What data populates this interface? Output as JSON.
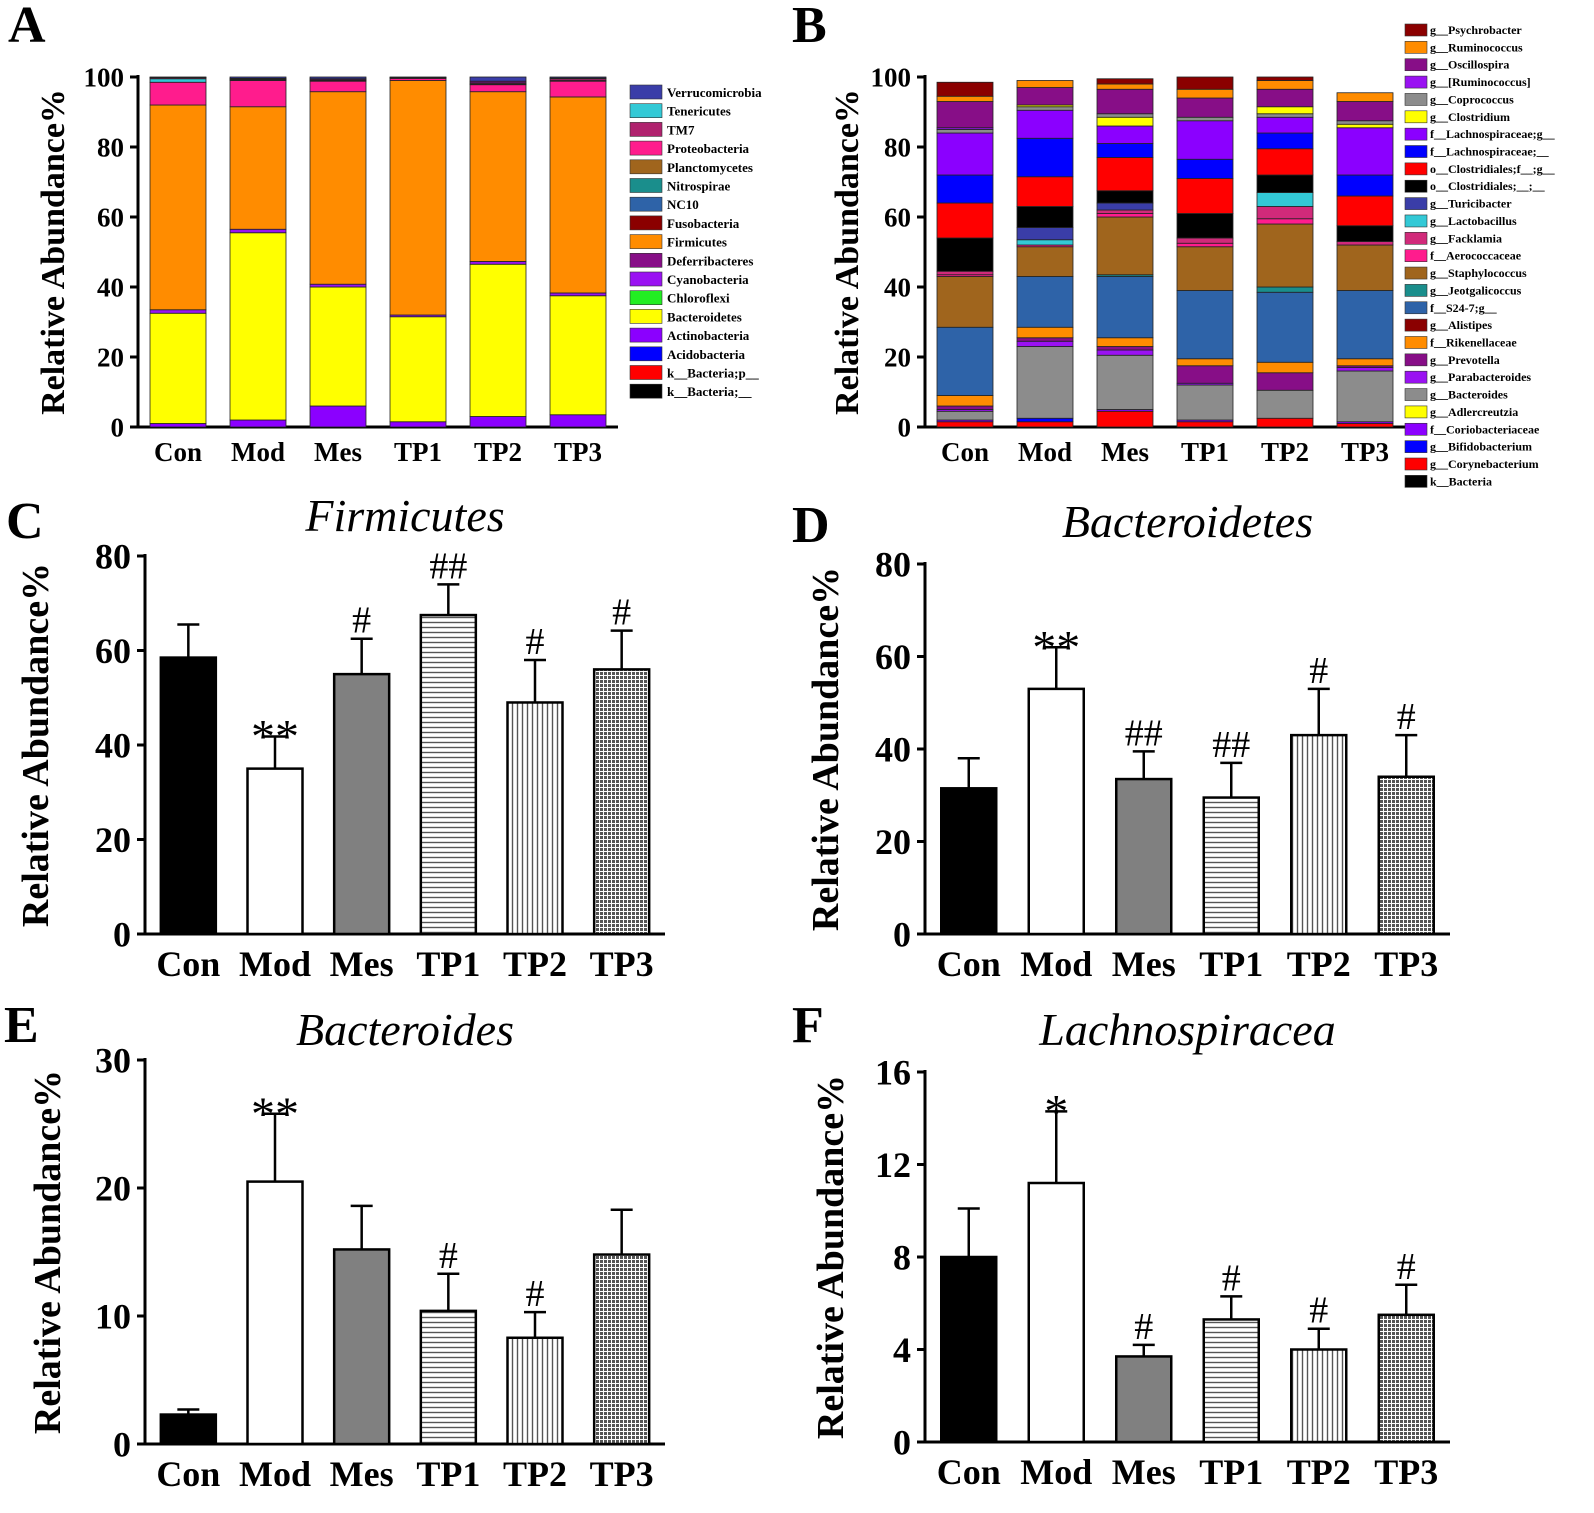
{
  "panel_labels": [
    "A",
    "B",
    "C",
    "D",
    "E",
    "F"
  ],
  "chart_data": [
    {
      "panel": "A",
      "type": "bar",
      "stacked": true,
      "ylabel": "Relative Abundance%",
      "ylim": [
        0,
        100
      ],
      "yticks": [
        "0",
        "20",
        "40",
        "60",
        "80",
        "100"
      ],
      "categories": [
        "Con",
        "Mod",
        "Mes",
        "TP1",
        "TP2",
        "TP3"
      ],
      "legend": [
        {
          "name": "Verrucomicrobia",
          "color": "#3A3DA8"
        },
        {
          "name": "Tenericutes",
          "color": "#33C9D6"
        },
        {
          "name": "TM7",
          "color": "#B0226E"
        },
        {
          "name": "Proteobacteria",
          "color": "#FF1C8D"
        },
        {
          "name": "Planctomycetes",
          "color": "#A0651D"
        },
        {
          "name": "Nitrospirae",
          "color": "#1A8E8C"
        },
        {
          "name": "NC10",
          "color": "#2E63A8"
        },
        {
          "name": "Fusobacteria",
          "color": "#8B0000"
        },
        {
          "name": "Firmicutes",
          "color": "#FF8C00"
        },
        {
          "name": "Deferribacteres",
          "color": "#870E87"
        },
        {
          "name": "Cyanobacteria",
          "color": "#9A12F2"
        },
        {
          "name": "Chloroflexi",
          "color": "#22EE22"
        },
        {
          "name": "Bacteroidetes",
          "color": "#FFFF00"
        },
        {
          "name": "Actinobacteria",
          "color": "#8B00FF"
        },
        {
          "name": "Acidobacteria",
          "color": "#0000FF"
        },
        {
          "name": "k__Bacteria;p__",
          "color": "#FF0000"
        },
        {
          "name": "k__Bacteria;__",
          "color": "#000000"
        }
      ],
      "series": [
        {
          "name": "Actinobacteria",
          "values": [
            1.0,
            2.0,
            6.0,
            1.5,
            3.0,
            3.5
          ]
        },
        {
          "name": "Bacteroidetes",
          "values": [
            31.5,
            53.5,
            34.0,
            30.0,
            43.5,
            34.0
          ]
        },
        {
          "name": "Cyanobacteria",
          "values": [
            1.0,
            1.0,
            0.8,
            0.5,
            0.8,
            0.8
          ]
        },
        {
          "name": "Firmicutes",
          "values": [
            58.5,
            35.0,
            55.0,
            67.0,
            48.5,
            56.0
          ]
        },
        {
          "name": "Proteobacteria",
          "values": [
            6.5,
            7.5,
            3.0,
            0.6,
            2.0,
            4.5
          ]
        },
        {
          "name": "Tenericutes",
          "values": [
            1.0,
            0.2,
            0.2,
            0.1,
            0.2,
            0.2
          ]
        },
        {
          "name": "TM7",
          "values": [
            0.3,
            0.2,
            0.2,
            0.1,
            0.3,
            0.5
          ]
        },
        {
          "name": "Deferribacteres",
          "values": [
            0.1,
            0.2,
            0.3,
            0.1,
            0.5,
            0.2
          ]
        },
        {
          "name": "Verrucomicrobia",
          "values": [
            0.1,
            0.4,
            0.5,
            0.1,
            1.2,
            0.3
          ]
        }
      ]
    },
    {
      "panel": "B",
      "type": "bar",
      "stacked": true,
      "ylabel": "Relative Abundance%",
      "ylim": [
        0,
        100
      ],
      "yticks": [
        "0",
        "20",
        "40",
        "60",
        "80",
        "100"
      ],
      "categories": [
        "Con",
        "Mod",
        "Mes",
        "TP1",
        "TP2",
        "TP3"
      ],
      "legend": [
        {
          "name": "g__Psychrobacter",
          "color": "#8B0000"
        },
        {
          "name": "g__Ruminococcus",
          "color": "#FF8C00"
        },
        {
          "name": "g__Oscillospira",
          "color": "#870E87"
        },
        {
          "name": "g__[Ruminococcus]",
          "color": "#9A12F2"
        },
        {
          "name": "g__Coprococcus",
          "color": "#8C8C8C"
        },
        {
          "name": "g__Clostridium",
          "color": "#FFFF00"
        },
        {
          "name": "f__Lachnospiraceae;g__",
          "color": "#8B00FF"
        },
        {
          "name": "f__Lachnospiraceae;__",
          "color": "#0000FF"
        },
        {
          "name": "o__Clostridiales;f__;g__",
          "color": "#FF0000"
        },
        {
          "name": "o__Clostridiales;__;__",
          "color": "#000000"
        },
        {
          "name": "g__Turicibacter",
          "color": "#3A3DA8"
        },
        {
          "name": "g__Lactobacillus",
          "color": "#33C9D6"
        },
        {
          "name": "g__Facklamia",
          "color": "#D12A7A"
        },
        {
          "name": "f__Aerococcaceae",
          "color": "#FF1C8D"
        },
        {
          "name": "g__Staphylococcus",
          "color": "#A0651D"
        },
        {
          "name": "g__Jeotgalicoccus",
          "color": "#1A8E8C"
        },
        {
          "name": "f__S24-7;g__",
          "color": "#2E63A8"
        },
        {
          "name": "g__Alistipes",
          "color": "#8B0000"
        },
        {
          "name": "f__Rikenellaceae",
          "color": "#FF8C00"
        },
        {
          "name": "g__Prevotella",
          "color": "#870E87"
        },
        {
          "name": "g__Parabacteroides",
          "color": "#9A12F2"
        },
        {
          "name": "g__Bacteroides",
          "color": "#8C8C8C"
        },
        {
          "name": "g__Adlercreutzia",
          "color": "#FFFF00"
        },
        {
          "name": "f__Coriobacteriaceae",
          "color": "#8B00FF"
        },
        {
          "name": "g__Bifidobacterium",
          "color": "#0000FF"
        },
        {
          "name": "g__Corynebacterium",
          "color": "#FF0000"
        },
        {
          "name": "k__Bacteria",
          "color": "#000000"
        }
      ],
      "stacks": [
        [
          [
            "g__Corynebacterium",
            1.5
          ],
          [
            "f__Coriobacteriaceae",
            0.5
          ],
          [
            "g__Bacteroides",
            2.5
          ],
          [
            "g__Parabacteroides",
            0.5
          ],
          [
            "g__Prevotella",
            1.0
          ],
          [
            "f__Rikenellaceae",
            3.0
          ],
          [
            "f__S24-7;g__",
            19.5
          ],
          [
            "g__Staphylococcus",
            14.5
          ],
          [
            "f__Aerococcaceae",
            0.5
          ],
          [
            "g__Facklamia",
            1.0
          ],
          [
            "o__Clostridiales;__;__",
            9.5
          ],
          [
            "o__Clostridiales;f__;g__",
            10.0
          ],
          [
            "f__Lachnospiraceae;__",
            8.0
          ],
          [
            "f__Lachnospiraceae;g__",
            12.0
          ],
          [
            "g__Coprococcus",
            1.0
          ],
          [
            "g__[Ruminococcus]",
            0.5
          ],
          [
            "g__Oscillospira",
            7.5
          ],
          [
            "g__Ruminococcus",
            1.5
          ],
          [
            "g__Psychrobacter",
            4.0
          ]
        ],
        [
          [
            "g__Corynebacterium",
            1.5
          ],
          [
            "g__Bifidobacterium",
            1.0
          ],
          [
            "g__Bacteroides",
            20.5
          ],
          [
            "g__Parabacteroides",
            1.5
          ],
          [
            "g__Prevotella",
            1.0
          ],
          [
            "f__Rikenellaceae",
            3.0
          ],
          [
            "f__S24-7;g__",
            14.5
          ],
          [
            "g__Staphylococcus",
            8.5
          ],
          [
            "f__Aerococcaceae",
            0.5
          ],
          [
            "g__Lactobacillus",
            1.5
          ],
          [
            "g__Turicibacter",
            3.5
          ],
          [
            "o__Clostridiales;__;__",
            6.0
          ],
          [
            "o__Clostridiales;f__;g__",
            8.5
          ],
          [
            "f__Lachnospiraceae;__",
            11.0
          ],
          [
            "f__Lachnospiraceae;g__",
            8.0
          ],
          [
            "g__Coprococcus",
            1.0
          ],
          [
            "g__Clostridium",
            0.5
          ],
          [
            "g__Oscillospira",
            5.0
          ],
          [
            "g__Ruminococcus",
            2.0
          ]
        ],
        [
          [
            "g__Corynebacterium",
            4.5
          ],
          [
            "f__Coriobacteriaceae",
            0.5
          ],
          [
            "g__Bacteroides",
            15.5
          ],
          [
            "g__Parabacteroides",
            1.5
          ],
          [
            "g__Prevotella",
            1.0
          ],
          [
            "f__Rikenellaceae",
            2.5
          ],
          [
            "f__S24-7;g__",
            17.5
          ],
          [
            "g__Jeotgalicoccus",
            0.5
          ],
          [
            "g__Staphylococcus",
            16.5
          ],
          [
            "f__Aerococcaceae",
            1.0
          ],
          [
            "g__Facklamia",
            1.0
          ],
          [
            "g__Turicibacter",
            2.0
          ],
          [
            "o__Clostridiales;__;__",
            3.5
          ],
          [
            "o__Clostridiales;f__;g__",
            9.5
          ],
          [
            "f__Lachnospiraceae;__",
            4.0
          ],
          [
            "f__Lachnospiraceae;g__",
            5.0
          ],
          [
            "g__Clostridium",
            2.5
          ],
          [
            "g__Coprococcus",
            1.0
          ],
          [
            "g__Oscillospira",
            7.0
          ],
          [
            "g__Ruminococcus",
            1.5
          ],
          [
            "g__Psychrobacter",
            1.5
          ]
        ],
        [
          [
            "g__Corynebacterium",
            1.5
          ],
          [
            "f__Coriobacteriaceae",
            0.5
          ],
          [
            "g__Bacteroides",
            10.0
          ],
          [
            "g__Parabacteroides",
            0.5
          ],
          [
            "g__Prevotella",
            5.0
          ],
          [
            "f__Rikenellaceae",
            2.0
          ],
          [
            "f__S24-7;g__",
            19.5
          ],
          [
            "g__Staphylococcus",
            12.5
          ],
          [
            "f__Aerococcaceae",
            1.0
          ],
          [
            "g__Facklamia",
            1.5
          ],
          [
            "o__Clostridiales;__;__",
            7.0
          ],
          [
            "o__Clostridiales;f__;g__",
            10.0
          ],
          [
            "f__Lachnospiraceae;__",
            5.5
          ],
          [
            "f__Lachnospiraceae;g__",
            11.0
          ],
          [
            "g__Coprococcus",
            1.0
          ],
          [
            "g__Oscillospira",
            5.5
          ],
          [
            "g__Ruminococcus",
            2.5
          ],
          [
            "g__Psychrobacter",
            3.5
          ]
        ],
        [
          [
            "g__Corynebacterium",
            2.5
          ],
          [
            "g__Bacteroides",
            8.0
          ],
          [
            "g__Prevotella",
            5.0
          ],
          [
            "f__Rikenellaceae",
            3.0
          ],
          [
            "f__S24-7;g__",
            20.0
          ],
          [
            "g__Jeotgalicoccus",
            1.5
          ],
          [
            "g__Staphylococcus",
            18.0
          ],
          [
            "f__Aerococcaceae",
            1.5
          ],
          [
            "g__Facklamia",
            3.5
          ],
          [
            "g__Lactobacillus",
            4.0
          ],
          [
            "o__Clostridiales;__;__",
            5.0
          ],
          [
            "o__Clostridiales;f__;g__",
            7.5
          ],
          [
            "f__Lachnospiraceae;__",
            4.5
          ],
          [
            "f__Lachnospiraceae;g__",
            4.5
          ],
          [
            "g__Coprococcus",
            1.0
          ],
          [
            "g__Clostridium",
            2.0
          ],
          [
            "g__Oscillospira",
            5.0
          ],
          [
            "g__Ruminococcus",
            2.5
          ],
          [
            "g__Psychrobacter",
            1.0
          ]
        ],
        [
          [
            "g__Corynebacterium",
            1.0
          ],
          [
            "f__Coriobacteriaceae",
            0.5
          ],
          [
            "g__Bacteroides",
            14.5
          ],
          [
            "g__Parabacteroides",
            1.0
          ],
          [
            "g__Prevotella",
            0.5
          ],
          [
            "f__Rikenellaceae",
            2.0
          ],
          [
            "f__S24-7;g__",
            19.5
          ],
          [
            "g__Staphylococcus",
            13.0
          ],
          [
            "g__Facklamia",
            1.0
          ],
          [
            "o__Clostridiales;__;__",
            4.5
          ],
          [
            "o__Clostridiales;f__;g__",
            8.5
          ],
          [
            "f__Lachnospiraceae;__",
            6.0
          ],
          [
            "f__Lachnospiraceae;g__",
            13.5
          ],
          [
            "g__Clostridium",
            1.0
          ],
          [
            "g__Coprococcus",
            1.0
          ],
          [
            "g__Oscillospira",
            5.5
          ],
          [
            "g__Ruminococcus",
            2.5
          ]
        ]
      ]
    },
    {
      "panel": "C",
      "type": "bar",
      "title": "Firmicutes",
      "ylabel": "Relative Abundance%",
      "ylim": [
        0,
        80
      ],
      "yticks": [
        "0",
        "20",
        "40",
        "60",
        "80"
      ],
      "categories": [
        "Con",
        "Mod",
        "Mes",
        "TP1",
        "TP2",
        "TP3"
      ],
      "values": [
        58.5,
        35.0,
        55.0,
        67.5,
        49.0,
        56.0
      ],
      "errors": [
        7.0,
        6.8,
        7.5,
        6.5,
        9.0,
        8.2
      ],
      "significance": [
        "",
        "**",
        "#",
        "##",
        "#",
        "#"
      ]
    },
    {
      "panel": "D",
      "type": "bar",
      "title": "Bacteroidetes",
      "ylabel": "Relative Abundance%",
      "ylim": [
        0,
        80
      ],
      "yticks": [
        "0",
        "20",
        "40",
        "60",
        "80"
      ],
      "categories": [
        "Con",
        "Mod",
        "Mes",
        "TP1",
        "TP2",
        "TP3"
      ],
      "values": [
        31.5,
        53.0,
        33.5,
        29.5,
        43.0,
        34.0
      ],
      "errors": [
        6.5,
        9.0,
        6.0,
        7.5,
        10.0,
        9.0
      ],
      "significance": [
        "",
        "**",
        "##",
        "##",
        "#",
        "#"
      ]
    },
    {
      "panel": "E",
      "type": "bar",
      "title": "Bacteroides",
      "ylabel": "Relative Abundance%",
      "ylim": [
        0,
        30
      ],
      "yticks": [
        "0",
        "10",
        "20",
        "30"
      ],
      "categories": [
        "Con",
        "Mod",
        "Mes",
        "TP1",
        "TP2",
        "TP3"
      ],
      "values": [
        2.3,
        20.5,
        15.2,
        10.4,
        8.3,
        14.8
      ],
      "errors": [
        0.4,
        5.3,
        3.4,
        2.9,
        2.0,
        3.5
      ],
      "significance": [
        "",
        "**",
        "",
        "#",
        "#",
        ""
      ]
    },
    {
      "panel": "F",
      "type": "bar",
      "title": "Lachnospiracea",
      "ylabel": "Relative Abundance%",
      "ylim": [
        0,
        16
      ],
      "yticks": [
        "0",
        "4",
        "8",
        "12",
        "16"
      ],
      "categories": [
        "Con",
        "Mod",
        "Mes",
        "TP1",
        "TP2",
        "TP3"
      ],
      "values": [
        8.0,
        11.2,
        3.7,
        5.3,
        4.0,
        5.5
      ],
      "errors": [
        2.1,
        3.1,
        0.5,
        1.0,
        0.9,
        1.3
      ],
      "significance": [
        "",
        "*",
        "#",
        "#",
        "#",
        "#"
      ]
    }
  ]
}
